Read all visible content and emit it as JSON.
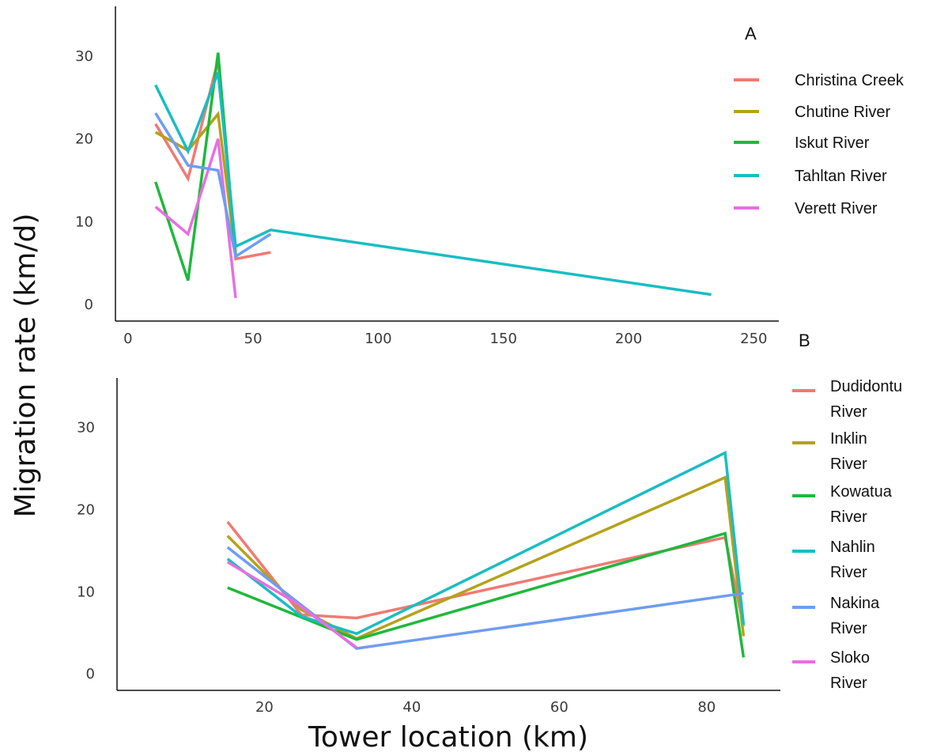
{
  "figure": {
    "ylabel": "Migration rate (km/d)",
    "xlabel": "Tower location (km)"
  },
  "chart_data": [
    {
      "type": "line",
      "panel_label": "A",
      "grid": false,
      "legend_position": "right",
      "xlim": [
        -5,
        260
      ],
      "ylim": [
        -2,
        36
      ],
      "x_ticks": [
        "0",
        "50",
        "100",
        "150",
        "200",
        "250"
      ],
      "y_ticks": [
        "0",
        "10",
        "20",
        "30"
      ],
      "x_tick_values": [
        0,
        50,
        100,
        150,
        200,
        250
      ],
      "y_tick_values": [
        0,
        10,
        20,
        30
      ],
      "series": [
        {
          "name": "Christina Creek",
          "color": "#F07A73",
          "points": [
            [
              11,
              21.8
            ],
            [
              24,
              15.2
            ],
            [
              36,
              29.5
            ],
            [
              43,
              5.5
            ],
            [
              57,
              6.3
            ]
          ]
        },
        {
          "name": "Chutine River",
          "color": "#B5A219",
          "points": [
            [
              11,
              20.8
            ],
            [
              24,
              18.6
            ],
            [
              36,
              23.0
            ],
            [
              43,
              6.0
            ]
          ]
        },
        {
          "name": "Iskut River",
          "color": "#1FB83C",
          "points": [
            [
              11,
              14.8
            ],
            [
              24,
              2.9
            ],
            [
              36,
              30.4
            ],
            [
              43,
              6.0
            ]
          ]
        },
        {
          "name": "Tahltan River",
          "color": "#19BDC1",
          "points": [
            [
              11,
              26.5
            ],
            [
              24,
              18.5
            ],
            [
              36,
              28.0
            ],
            [
              43,
              7.0
            ],
            [
              57,
              9.0
            ],
            [
              233,
              1.2
            ]
          ]
        },
        {
          "name": "Verett River",
          "color": "#E86EE0",
          "points": [
            [
              11,
              11.8
            ],
            [
              24,
              8.5
            ],
            [
              36,
              20.0
            ],
            [
              43,
              0.8
            ]
          ]
        },
        {
          "name": "",
          "color": "#6E9DF2",
          "points": [
            [
              11,
              23.1
            ],
            [
              24,
              16.8
            ],
            [
              36,
              16.2
            ],
            [
              43,
              5.8
            ],
            [
              57,
              8.5
            ]
          ]
        }
      ]
    },
    {
      "type": "line",
      "panel_label": "B",
      "grid": false,
      "legend_position": "right",
      "xlim": [
        0,
        90
      ],
      "ylim": [
        -2,
        36
      ],
      "x_ticks": [
        "20",
        "40",
        "60",
        "80"
      ],
      "y_ticks": [
        "0",
        "10",
        "20",
        "30"
      ],
      "x_tick_values": [
        20,
        40,
        60,
        80
      ],
      "y_tick_values": [
        0,
        10,
        20,
        30
      ],
      "series": [
        {
          "name": "Dudidontu River",
          "color": "#F07A73",
          "points": [
            [
              15,
              18.5
            ],
            [
              25,
              7.2
            ],
            [
              32.5,
              6.8
            ],
            [
              82.5,
              16.6
            ],
            [
              85,
              5.8
            ]
          ]
        },
        {
          "name": "Inklin River",
          "color": "#B5A219",
          "points": [
            [
              15,
              16.8
            ],
            [
              25,
              7.8
            ],
            [
              32.5,
              4.3
            ],
            [
              82.5,
              23.9
            ],
            [
              85,
              4.6
            ]
          ]
        },
        {
          "name": "Kowatua River",
          "color": "#1FB83C",
          "points": [
            [
              15,
              10.5
            ],
            [
              32.5,
              4.2
            ],
            [
              82.5,
              17.1
            ],
            [
              85,
              2.0
            ]
          ]
        },
        {
          "name": "Nahlin River",
          "color": "#19BDC1",
          "points": [
            [
              15,
              14.0
            ],
            [
              25,
              7.0
            ],
            [
              32.5,
              4.9
            ],
            [
              82.5,
              26.9
            ],
            [
              85,
              6.0
            ]
          ]
        },
        {
          "name": "Nakina River",
          "color": "#6E9DF2",
          "points": [
            [
              15,
              15.4
            ],
            [
              32.5,
              3.1
            ],
            [
              85,
              9.8
            ]
          ]
        },
        {
          "name": "Sloko River",
          "color": "#E86EE0",
          "points": [
            [
              15,
              13.6
            ],
            [
              24,
              8.8
            ],
            [
              32.5,
              3.2
            ]
          ]
        }
      ]
    }
  ]
}
